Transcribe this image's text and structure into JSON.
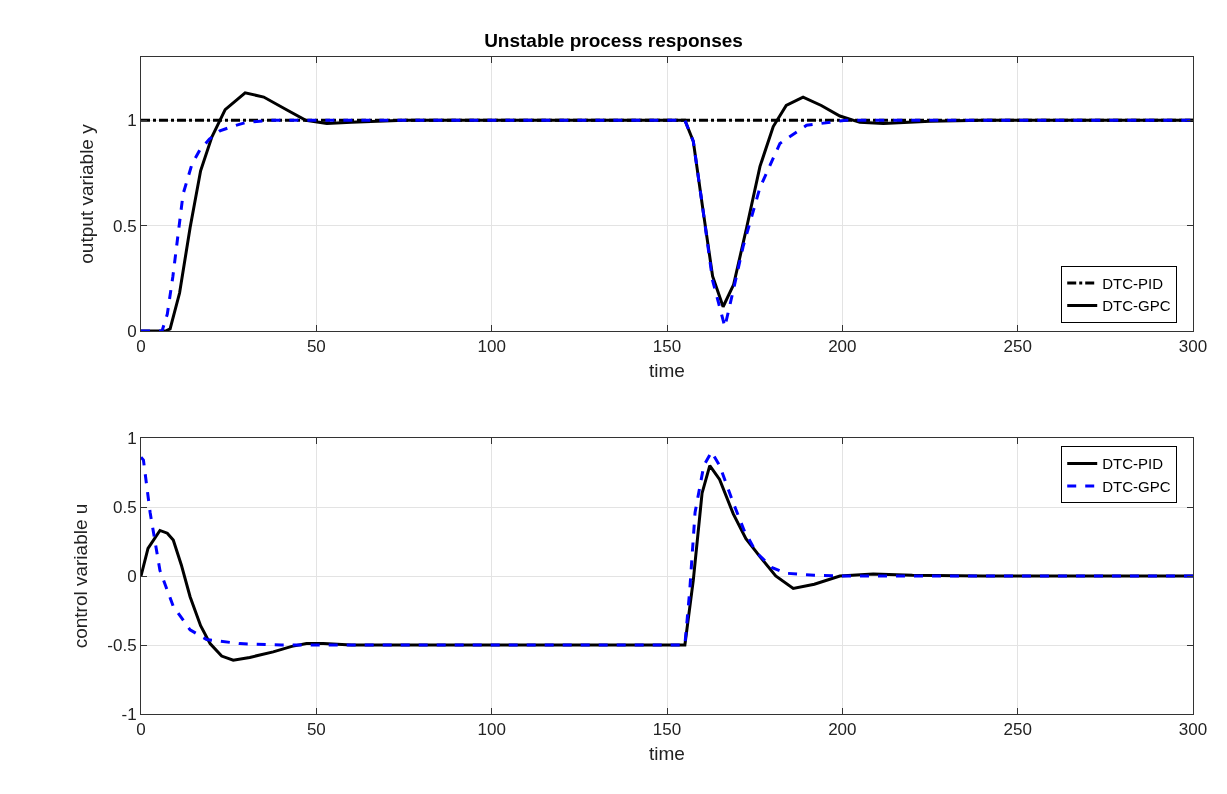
{
  "chart_data": [
    {
      "type": "line",
      "title": "Unstable process responses",
      "xlabel": "time",
      "ylabel": "output variable y",
      "xlim": [
        0,
        300
      ],
      "xticks": [
        0,
        50,
        100,
        150,
        200,
        250,
        300
      ],
      "ylim": [
        0,
        1.3
      ],
      "yticks": [
        0,
        0.5,
        1
      ],
      "grid": true,
      "legend": "bottom right",
      "marker": "none",
      "series": [
        {
          "name": "DTC-PID",
          "color": "#000000",
          "line_style": "dashdot",
          "x": [
            0,
            300
          ],
          "values": [
            1,
            1
          ]
        },
        {
          "name": "DTC-GPC",
          "color": "#000000",
          "line_style": "solid",
          "x": [
            0,
            7,
            8.3,
            11,
            14,
            17,
            20.2,
            24,
            29.7,
            35,
            41.5,
            47,
            53,
            60,
            75,
            155.1,
            157.5,
            160.3,
            163,
            166,
            169,
            172.7,
            176.5,
            180.3,
            184,
            188.8,
            194,
            199.3,
            205,
            211.7,
            225,
            240,
            300
          ],
          "values": [
            0,
            0,
            0.01,
            0.18,
            0.49,
            0.76,
            0.92,
            1.05,
            1.13,
            1.11,
            1.05,
            1.0,
            0.985,
            0.99,
            1,
            1,
            0.9,
            0.57,
            0.26,
            0.115,
            0.22,
            0.49,
            0.78,
            0.97,
            1.07,
            1.11,
            1.07,
            1.02,
            0.99,
            0.985,
            0.995,
            1,
            1
          ]
        },
        {
          "color": "#0000ff",
          "line_style": "dashed",
          "x": [
            0,
            6,
            7.5,
            9.1,
            12,
            14.5,
            16.8,
            19.5,
            22.5,
            26,
            30,
            37,
            45,
            155.1,
            157.5,
            160.3,
            163,
            166.5,
            169,
            171.7,
            176.5,
            182.2,
            189.8,
            201,
            300
          ],
          "values": [
            0,
            0,
            0.08,
            0.26,
            0.65,
            0.79,
            0.86,
            0.91,
            0.95,
            0.97,
            0.99,
            1.0,
            1,
            1,
            0.9,
            0.57,
            0.24,
            0.02,
            0.2,
            0.4,
            0.68,
            0.89,
            0.976,
            1,
            1
          ]
        }
      ]
    },
    {
      "type": "line",
      "xlabel": "time",
      "ylabel": "control variable u",
      "xlim": [
        0,
        300
      ],
      "xticks": [
        0,
        50,
        100,
        150,
        200,
        250,
        300
      ],
      "ylim": [
        -1,
        1
      ],
      "yticks": [
        -1,
        -0.5,
        0,
        0.5,
        1
      ],
      "grid": true,
      "legend": "top right",
      "marker": "none",
      "series": [
        {
          "name": "DTC-PID",
          "color": "#000000",
          "line_style": "solid",
          "x": [
            0,
            2,
            5.4,
            7.5,
            9.2,
            11.5,
            14,
            17,
            19.7,
            23,
            26.3,
            31,
            37.7,
            43,
            47.2,
            52,
            60,
            75,
            155.1,
            157.5,
            160,
            162.2,
            165,
            168.9,
            172.5,
            176.5,
            181,
            186,
            192,
            199.3,
            208.8,
            220,
            240,
            300
          ],
          "values": [
            0,
            0.2,
            0.33,
            0.31,
            0.26,
            0.08,
            -0.15,
            -0.36,
            -0.49,
            -0.58,
            -0.61,
            -0.59,
            -0.55,
            -0.51,
            -0.49,
            -0.49,
            -0.5,
            -0.5,
            -0.5,
            -0.03,
            0.6,
            0.8,
            0.7,
            0.45,
            0.27,
            0.14,
            0.0,
            -0.09,
            -0.06,
            0,
            0.015,
            0.005,
            0,
            0
          ]
        },
        {
          "name": "DTC-GPC",
          "color": "#0000ff",
          "line_style": "dashed",
          "x": [
            0,
            0.7,
            2.6,
            5.4,
            9.2,
            14,
            18.7,
            28.2,
            40,
            155.1,
            156.5,
            158,
            160.5,
            162.7,
            165,
            168.9,
            172,
            175.5,
            180,
            184,
            192,
            200,
            300
          ],
          "values": [
            0.86,
            0.84,
            0.46,
            0.04,
            -0.22,
            -0.39,
            -0.46,
            -0.49,
            -0.5,
            -0.5,
            -0.1,
            0.46,
            0.8,
            0.9,
            0.8,
            0.53,
            0.33,
            0.17,
            0.06,
            0.02,
            0.005,
            0,
            0
          ]
        }
      ]
    }
  ]
}
